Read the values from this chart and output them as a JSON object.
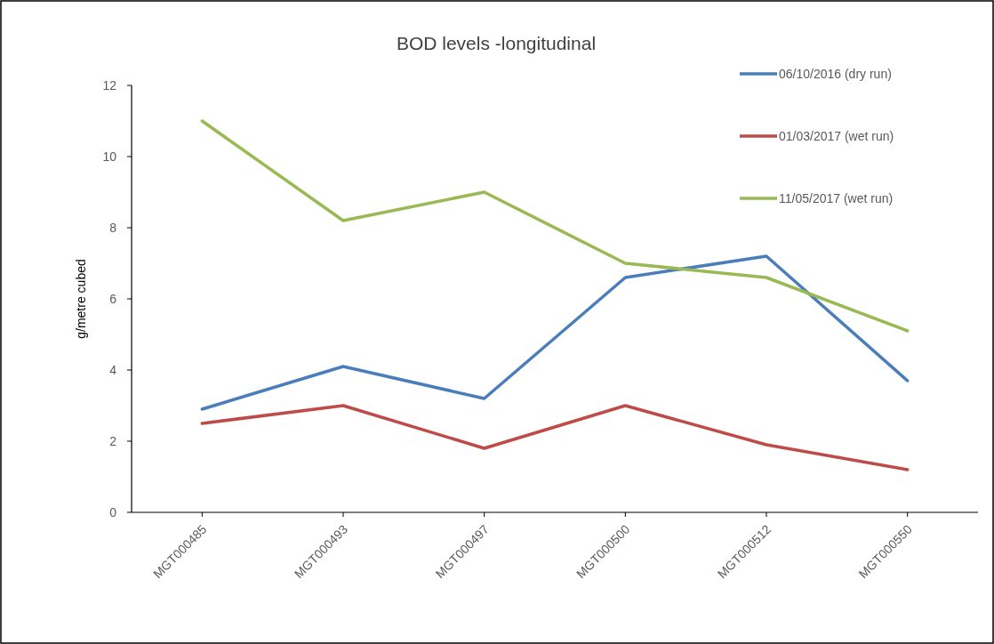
{
  "chart_data": {
    "type": "line",
    "title": "BOD levels -longitudinal",
    "ylabel": "g/metre cubed",
    "categories": [
      "MGT000485",
      "MGT000493",
      "MGT000497",
      "MGT000500",
      "MGT000512",
      "MGT000550"
    ],
    "series": [
      {
        "name": "06/10/2016 (dry run)",
        "color": "#4a7ebb",
        "values": [
          2.9,
          4.1,
          3.2,
          6.6,
          7.2,
          3.7
        ]
      },
      {
        "name": "01/03/2017 (wet run)",
        "color": "#be4b48",
        "values": [
          2.5,
          3.0,
          1.8,
          3.0,
          1.9,
          1.2
        ]
      },
      {
        "name": "11/05/2017 (wet run)",
        "color": "#98b954",
        "values": [
          11.0,
          8.2,
          9.0,
          7.0,
          6.6,
          5.1
        ]
      }
    ],
    "ylim": [
      0,
      12
    ],
    "yticks": [
      0,
      2,
      4,
      6,
      8,
      10,
      12
    ],
    "grid": false,
    "legend": "top right",
    "marker": "none",
    "line_style": "solid"
  }
}
